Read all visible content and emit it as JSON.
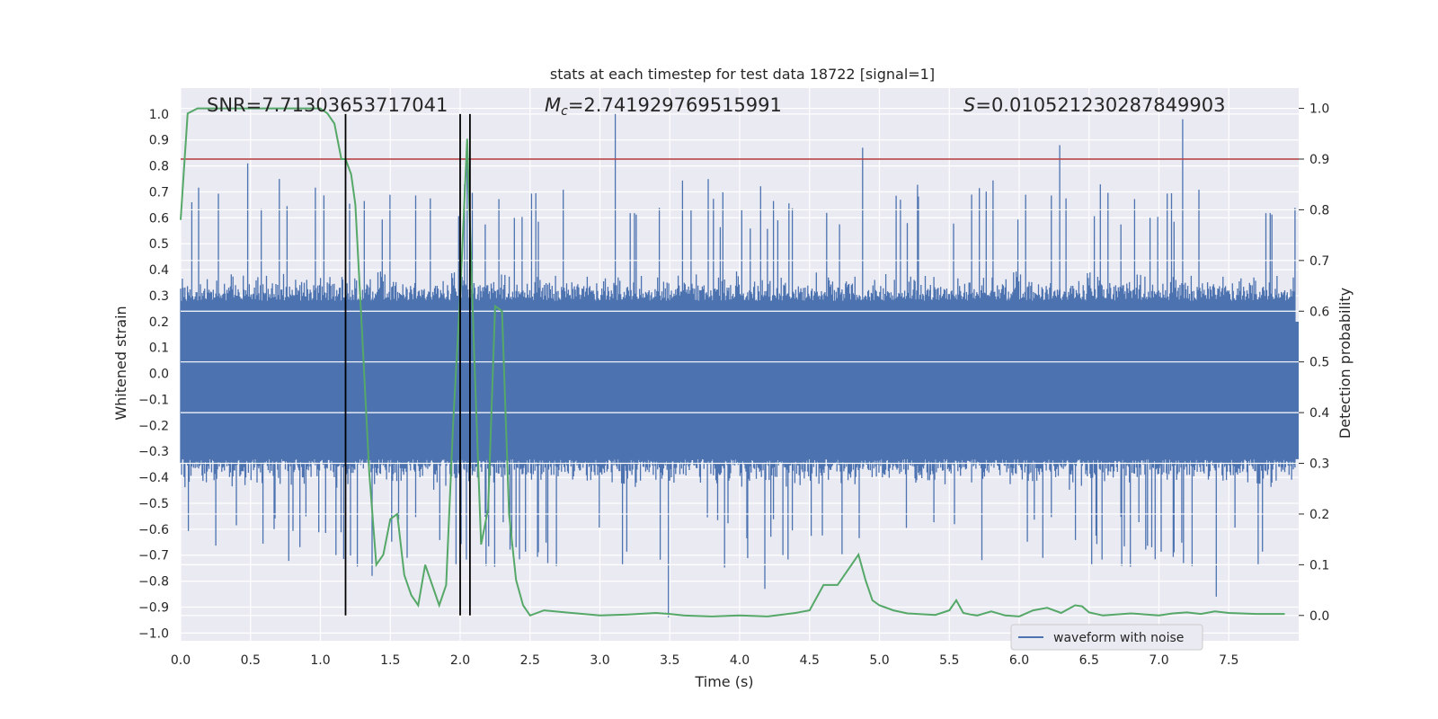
{
  "chart_data": {
    "type": "line",
    "title": "stats at each timestep for test data 18722 [signal=1]",
    "xlabel": "Time (s)",
    "ylabel_left": "Whitened strain",
    "ylabel_right": "Detection probability",
    "xlim": [
      0.0,
      8.0
    ],
    "ylim_left": [
      -1.03,
      1.1
    ],
    "ylim_right": [
      -0.05,
      1.04
    ],
    "x_ticks": [
      "0.0",
      "0.5",
      "1.0",
      "1.5",
      "2.0",
      "2.5",
      "3.0",
      "3.5",
      "4.0",
      "4.5",
      "5.0",
      "5.5",
      "6.0",
      "6.5",
      "7.0",
      "7.5"
    ],
    "y_ticks_left": [
      "−1.0",
      "−0.9",
      "−0.8",
      "−0.7",
      "−0.6",
      "−0.5",
      "−0.4",
      "−0.3",
      "−0.2",
      "−0.1",
      "0.0",
      "0.1",
      "0.2",
      "0.3",
      "0.4",
      "0.5",
      "0.6",
      "0.7",
      "0.8",
      "0.9",
      "1.0"
    ],
    "y_ticks_right": [
      "0.0",
      "0.1",
      "0.2",
      "0.3",
      "0.4",
      "0.5",
      "0.6",
      "0.7",
      "0.8",
      "0.9",
      "1.0"
    ],
    "grid": true,
    "legend_placement": "lower-right",
    "annotations": {
      "snr": "SNR=7.71303653717041",
      "mc_symbol": "M",
      "mc_sub": "c",
      "mc_value": "=2.741929769515991",
      "s_symbol": "S",
      "s_value": "=0.010521230287849903"
    },
    "threshold": {
      "value": 0.9,
      "color": "#b3383b"
    },
    "vertical_lines": [
      1.18,
      2.0,
      2.07
    ],
    "series": [
      {
        "name": "waveform with noise",
        "axis": "left",
        "color": "#4c72b0",
        "notable_peaks": [
          {
            "x": 0.48,
            "y": 0.81
          },
          {
            "x": 3.11,
            "y": 1.0
          },
          {
            "x": 4.88,
            "y": 0.87
          },
          {
            "x": 6.29,
            "y": 0.88
          },
          {
            "x": 7.17,
            "y": 0.98
          },
          {
            "x": 2.05,
            "y": 0.85
          },
          {
            "x": 3.49,
            "y": -0.94
          },
          {
            "x": 1.37,
            "y": -0.78
          },
          {
            "x": 4.18,
            "y": -0.83
          },
          {
            "x": 7.41,
            "y": -0.86
          }
        ]
      },
      {
        "name": "",
        "axis": "right",
        "color": "#55a868",
        "x": [
          0.0,
          0.05,
          0.12,
          0.2,
          0.4,
          0.6,
          0.8,
          1.0,
          1.05,
          1.1,
          1.15,
          1.18,
          1.22,
          1.25,
          1.3,
          1.35,
          1.4,
          1.45,
          1.5,
          1.55,
          1.6,
          1.65,
          1.7,
          1.75,
          1.8,
          1.85,
          1.9,
          1.95,
          2.0,
          2.05,
          2.1,
          2.15,
          2.2,
          2.25,
          2.3,
          2.35,
          2.4,
          2.45,
          2.5,
          2.6,
          2.8,
          3.0,
          3.2,
          3.4,
          3.5,
          3.6,
          3.8,
          4.0,
          4.2,
          4.4,
          4.5,
          4.6,
          4.7,
          4.8,
          4.85,
          4.9,
          4.95,
          5.0,
          5.1,
          5.2,
          5.4,
          5.5,
          5.55,
          5.6,
          5.65,
          5.7,
          5.8,
          5.9,
          6.0,
          6.1,
          6.2,
          6.3,
          6.4,
          6.45,
          6.5,
          6.6,
          6.8,
          7.0,
          7.1,
          7.2,
          7.3,
          7.4,
          7.5,
          7.7,
          7.9
        ],
        "y": [
          0.78,
          0.99,
          1.0,
          1.0,
          1.0,
          1.0,
          1.0,
          1.0,
          0.99,
          0.97,
          0.9,
          0.9,
          0.87,
          0.81,
          0.55,
          0.28,
          0.1,
          0.12,
          0.19,
          0.2,
          0.08,
          0.04,
          0.02,
          0.1,
          0.06,
          0.02,
          0.06,
          0.38,
          0.63,
          0.94,
          0.52,
          0.14,
          0.21,
          0.61,
          0.6,
          0.2,
          0.07,
          0.02,
          0.0,
          0.01,
          0.005,
          0.0,
          0.002,
          0.005,
          0.003,
          0.0,
          -0.002,
          0.0,
          -0.002,
          0.005,
          0.01,
          0.06,
          0.06,
          0.1,
          0.12,
          0.07,
          0.03,
          0.02,
          0.01,
          0.004,
          0.001,
          0.01,
          0.03,
          0.005,
          0.002,
          0.0,
          0.008,
          0.0,
          -0.002,
          0.01,
          0.015,
          0.005,
          0.02,
          0.018,
          0.006,
          0.0,
          0.004,
          0.0,
          0.004,
          0.006,
          0.003,
          0.008,
          0.005,
          0.003,
          0.003
        ]
      }
    ]
  }
}
